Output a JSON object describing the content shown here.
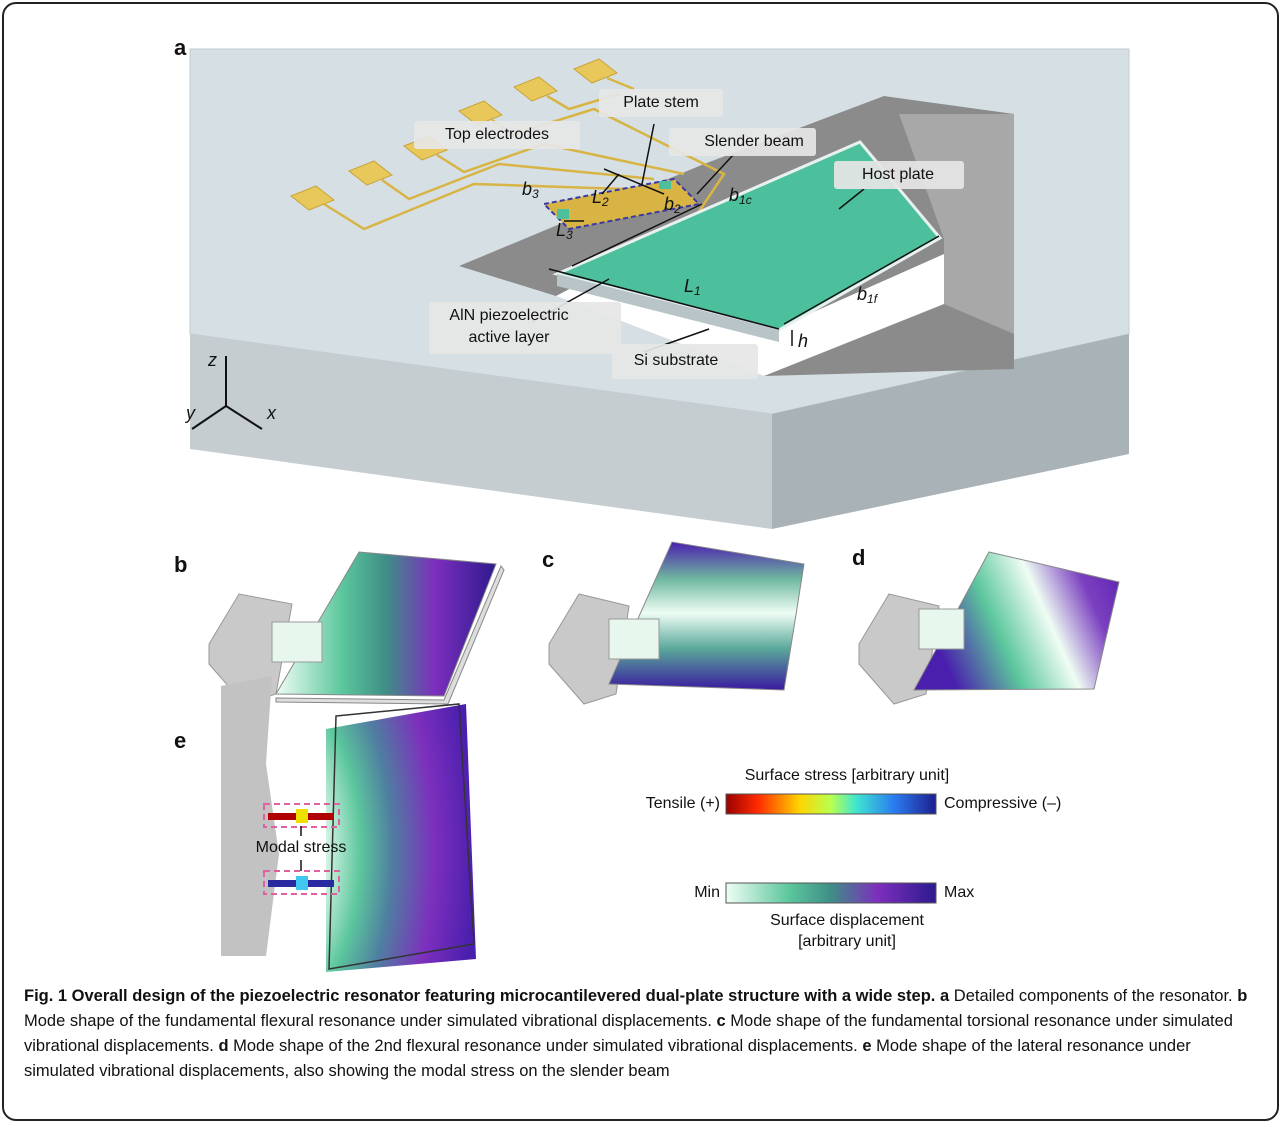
{
  "panels": {
    "a": "a",
    "b": "b",
    "c": "c",
    "d": "d",
    "e": "e"
  },
  "panel_a": {
    "callouts": {
      "plate_stem": "Plate stem",
      "top_electrodes": "Top electrodes",
      "slender_beam": "Slender beam",
      "host_plate": "Host plate",
      "aln_layer": [
        "AlN piezoelectric",
        "active layer"
      ],
      "si_substrate": "Si substrate"
    },
    "dimensions": {
      "L1": {
        "symbol": "L",
        "sub": "1"
      },
      "L2": {
        "symbol": "L",
        "sub": "2"
      },
      "L3": {
        "symbol": "L",
        "sub": "3"
      },
      "b1c": {
        "symbol": "b",
        "sub": "1c"
      },
      "b1f": {
        "symbol": "b",
        "sub": "1f"
      },
      "b2": {
        "symbol": "b",
        "sub": "2"
      },
      "b3": {
        "symbol": "b",
        "sub": "3"
      },
      "h": {
        "symbol": "h"
      }
    },
    "axes": {
      "z": "z",
      "y": "y",
      "x": "x"
    }
  },
  "panel_e": {
    "annotation": "Modal stress"
  },
  "colorbars": {
    "stress": {
      "title": "Surface stress [arbitrary unit]",
      "left": "Tensile (+)",
      "right": "Compressive (–)"
    },
    "displacement": {
      "left": "Min",
      "right": "Max",
      "title": [
        "Surface displacement",
        "[arbitrary unit]"
      ]
    }
  },
  "caption": {
    "title": "Fig. 1 Overall design of the piezoelectric resonator featuring microcantilevered dual-plate structure with a wide step.",
    "items": [
      {
        "label": "a",
        "text": "Detailed components of the resonator."
      },
      {
        "label": "b",
        "text": "Mode shape of the fundamental flexural resonance under simulated vibrational displacements."
      },
      {
        "label": "c",
        "text": "Mode shape of the fundamental torsional resonance under simulated vibrational displacements."
      },
      {
        "label": "d",
        "text": "Mode shape of the 2nd flexural resonance under simulated vibrational displacements."
      },
      {
        "label": "e",
        "text": "Mode shape of the lateral resonance under simulated vibrational displacements, also showing the modal stress on the slender beam"
      }
    ]
  }
}
